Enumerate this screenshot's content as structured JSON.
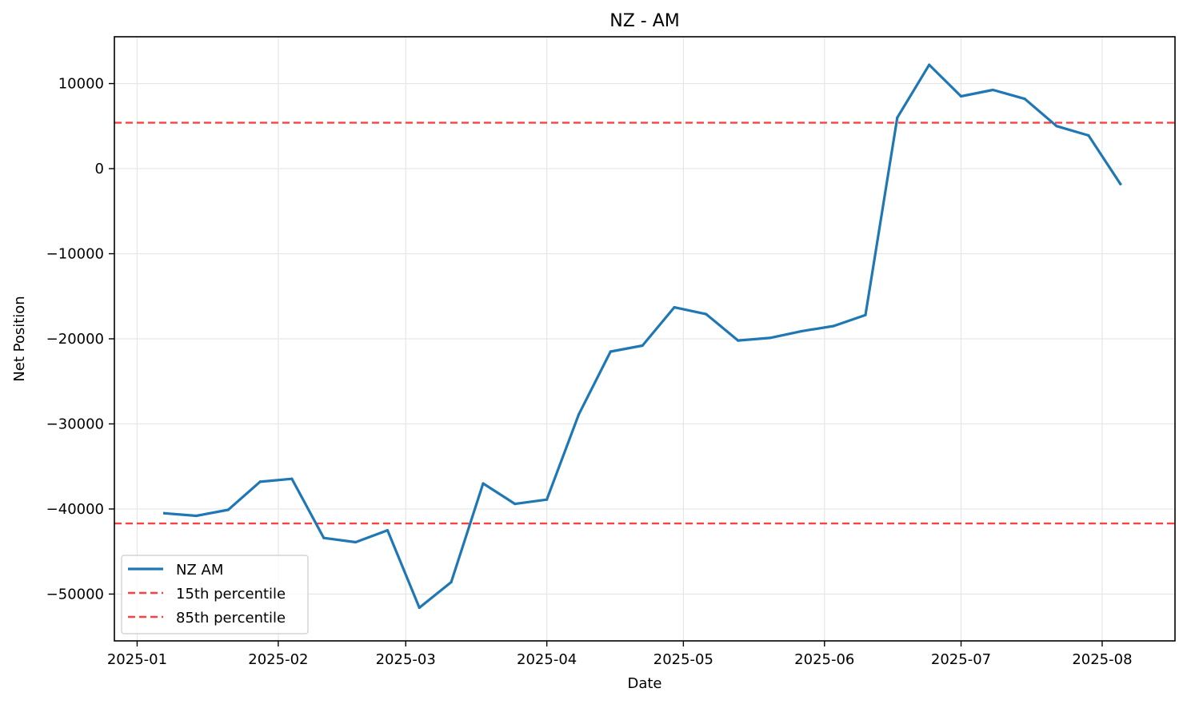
{
  "chart_data": {
    "type": "line",
    "title": "NZ - AM",
    "xlabel": "Date",
    "ylabel": "Net Position",
    "x_axis": {
      "kind": "date",
      "range": [
        "2024-12-27",
        "2025-08-17"
      ],
      "ticks": [
        "2025-01-01",
        "2025-02-01",
        "2025-03-01",
        "2025-04-01",
        "2025-05-01",
        "2025-06-01",
        "2025-07-01",
        "2025-08-01"
      ],
      "tick_labels": [
        "2025-01",
        "2025-02",
        "2025-03",
        "2025-04",
        "2025-05",
        "2025-06",
        "2025-07",
        "2025-08"
      ]
    },
    "y_axis": {
      "range": [
        -55500,
        15500
      ],
      "ticks": [
        -50000,
        -40000,
        -30000,
        -20000,
        -10000,
        0,
        10000
      ],
      "tick_labels": [
        "−50000",
        "−40000",
        "−30000",
        "−20000",
        "−10000",
        "0",
        "10000"
      ]
    },
    "grid": true,
    "legend_position": "lower-left",
    "series": [
      {
        "name": "NZ AM",
        "color": "#1f77b4",
        "style": "solid",
        "points": [
          [
            "2025-01-07",
            -40500
          ],
          [
            "2025-01-14",
            -40800
          ],
          [
            "2025-01-21",
            -40100
          ],
          [
            "2025-01-28",
            -36800
          ],
          [
            "2025-02-04",
            -36450
          ],
          [
            "2025-02-11",
            -43400
          ],
          [
            "2025-02-18",
            -43900
          ],
          [
            "2025-02-25",
            -42500
          ],
          [
            "2025-03-04",
            -51600
          ],
          [
            "2025-03-11",
            -48600
          ],
          [
            "2025-03-18",
            -37000
          ],
          [
            "2025-03-25",
            -39400
          ],
          [
            "2025-04-01",
            -38900
          ],
          [
            "2025-04-08",
            -28900
          ],
          [
            "2025-04-15",
            -21500
          ],
          [
            "2025-04-22",
            -20800
          ],
          [
            "2025-04-29",
            -16300
          ],
          [
            "2025-05-06",
            -17100
          ],
          [
            "2025-05-13",
            -20200
          ],
          [
            "2025-05-20",
            -19900
          ],
          [
            "2025-05-27",
            -19100
          ],
          [
            "2025-06-03",
            -18500
          ],
          [
            "2025-06-10",
            -17200
          ],
          [
            "2025-06-17",
            6000
          ],
          [
            "2025-06-24",
            12200
          ],
          [
            "2025-07-01",
            8500
          ],
          [
            "2025-07-08",
            9250
          ],
          [
            "2025-07-15",
            8200
          ],
          [
            "2025-07-22",
            5000
          ],
          [
            "2025-07-29",
            3900
          ],
          [
            "2025-08-05",
            -1800
          ]
        ]
      },
      {
        "name": "15th percentile",
        "color": "#ff4040",
        "style": "dashed",
        "constant": -41700
      },
      {
        "name": "85th percentile",
        "color": "#ff4040",
        "style": "dashed",
        "constant": 5400
      }
    ]
  }
}
